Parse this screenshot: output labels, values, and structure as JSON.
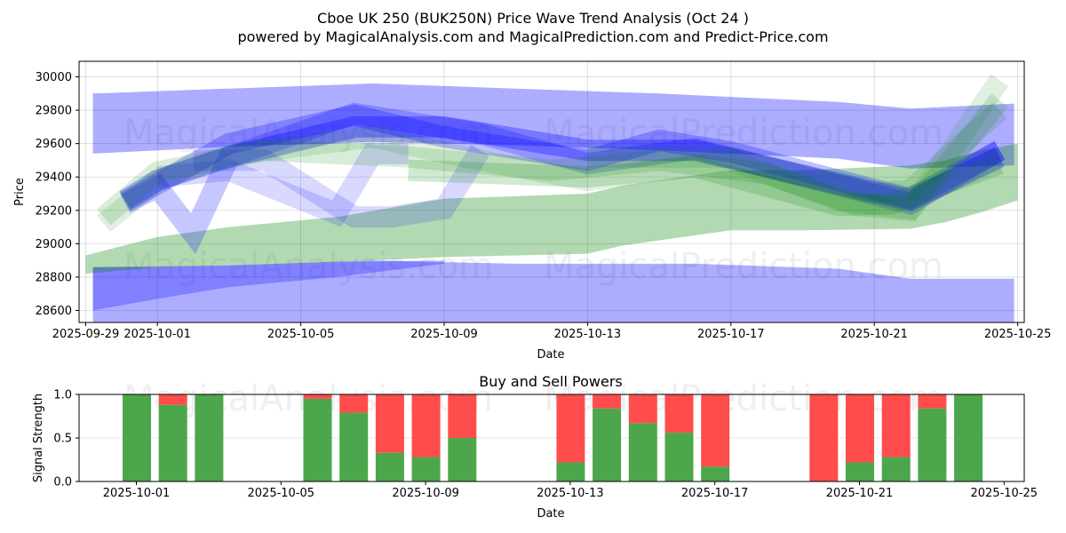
{
  "header": {
    "title": "Cboe UK 250 (BUK250N) Price Wave Trend Analysis (Oct 24 )",
    "subtitle": "powered by MagicalAnalysis.com and MagicalPrediction.com and Predict-Price.com"
  },
  "watermarks": [
    "MagicalAnalysis.com",
    "MagicalPrediction.com"
  ],
  "colors": {
    "blue_band": "#0000ff",
    "green_band": "#008000",
    "buy": "#4ca64c",
    "sell": "#ff4c4c",
    "grid": "#b0b0b0"
  },
  "chart_data": [
    {
      "type": "area",
      "title": "",
      "xlabel": "Date",
      "ylabel": "Price",
      "x_range": [
        "2025-09-29",
        "2025-10-25"
      ],
      "ylim": [
        28520,
        30090
      ],
      "grid": true,
      "x_ticks": [
        "2025-09-29",
        "2025-10-01",
        "2025-10-05",
        "2025-10-09",
        "2025-10-13",
        "2025-10-17",
        "2025-10-21",
        "2025-10-25"
      ],
      "y_ticks": [
        28600,
        28800,
        29000,
        29200,
        29400,
        29600,
        29800,
        30000
      ],
      "bands": [
        {
          "name": "upper-envelope",
          "color": "blue",
          "alpha": 0.32,
          "points": [
            [
              "2025-09-29.2",
              29900,
              29540
            ],
            [
              "2025-10-03",
              29930,
              29580
            ],
            [
              "2025-10-07",
              29960,
              29610
            ],
            [
              "2025-10-11",
              29930,
              29590
            ],
            [
              "2025-10-15",
              29900,
              29560
            ],
            [
              "2025-10-20",
              29850,
              29510
            ],
            [
              "2025-10-22",
              29810,
              29450
            ],
            [
              "2025-10-24.9",
              29840,
              29470
            ]
          ]
        },
        {
          "name": "lower-envelope",
          "color": "blue",
          "alpha": 0.32,
          "points": [
            [
              "2025-09-29.2",
              28860,
              28500
            ],
            [
              "2025-10-03",
              28870,
              28510
            ],
            [
              "2025-10-07",
              28900,
              28530
            ],
            [
              "2025-10-11",
              28880,
              28520
            ],
            [
              "2025-10-16",
              28880,
              28520
            ],
            [
              "2025-10-20",
              28850,
              28500
            ],
            [
              "2025-10-22",
              28790,
              28450
            ],
            [
              "2025-10-24.9",
              28790,
              28440
            ]
          ]
        },
        {
          "name": "lower-envelope-shadow",
          "color": "blue",
          "alpha": 0.25,
          "points": [
            [
              "2025-09-29.2",
              28860,
              28600
            ],
            [
              "2025-10-01",
              28860,
              28670
            ],
            [
              "2025-10-03",
              28870,
              28740
            ],
            [
              "2025-10-06",
              28890,
              28800
            ],
            [
              "2025-10-09",
              28900,
              28880
            ]
          ]
        },
        {
          "name": "trend-green",
          "color": "green",
          "alpha": 0.3,
          "points": [
            [
              "2025-09-29",
              28930,
              28820
            ],
            [
              "2025-10-01",
              29040,
              28860
            ],
            [
              "2025-10-03",
              29100,
              28870
            ],
            [
              "2025-10-06",
              29160,
              28890
            ],
            [
              "2025-10-09",
              29270,
              28920
            ],
            [
              "2025-10-13",
              29300,
              28940
            ],
            [
              "2025-10-14",
              29350,
              28990
            ],
            [
              "2025-10-17",
              29440,
              29080
            ],
            [
              "2025-10-19",
              29440,
              29080
            ],
            [
              "2025-10-22",
              29470,
              29090
            ],
            [
              "2025-10-23",
              29500,
              29130
            ],
            [
              "2025-10-24",
              29560,
              29190
            ],
            [
              "2025-10-25",
              29600,
              29260
            ]
          ]
        }
      ],
      "waves": [
        {
          "color": "blue",
          "alpha": 0.3,
          "points": [
            [
              "2025-09-30.1",
              29260
            ],
            [
              "2025-10-01",
              29380
            ],
            [
              "2025-10-03",
              29520
            ],
            [
              "2025-10-06.5",
              29700
            ],
            [
              "2025-10-09",
              29700
            ],
            [
              "2025-10-13",
              29560
            ],
            [
              "2025-10-16",
              29560
            ],
            [
              "2025-10-20",
              29360
            ],
            [
              "2025-10-22",
              29260
            ],
            [
              "2025-10-24.5",
              29520
            ]
          ]
        },
        {
          "color": "blue",
          "alpha": 0.25,
          "points": [
            [
              "2025-09-30.1",
              29250
            ],
            [
              "2025-10-01.5",
              29420
            ],
            [
              "2025-10-03",
              29600
            ],
            [
              "2025-10-06.5",
              29770
            ],
            [
              "2025-10-09",
              29640
            ],
            [
              "2025-10-13",
              29500
            ],
            [
              "2025-10-15",
              29620
            ],
            [
              "2025-10-17",
              29550
            ],
            [
              "2025-10-20",
              29380
            ],
            [
              "2025-10-22",
              29270
            ],
            [
              "2025-10-24.5",
              29560
            ]
          ]
        },
        {
          "color": "blue",
          "alpha": 0.22,
          "points": [
            [
              "2025-09-30.1",
              29240
            ],
            [
              "2025-10-01",
              29340
            ],
            [
              "2025-10-02",
              29060
            ],
            [
              "2025-10-03",
              29520
            ],
            [
              "2025-10-06.5",
              29780
            ],
            [
              "2025-10-10",
              29660
            ],
            [
              "2025-10-13",
              29480
            ],
            [
              "2025-10-16",
              29570
            ],
            [
              "2025-10-20",
              29350
            ],
            [
              "2025-10-22",
              29240
            ],
            [
              "2025-10-24.5",
              29560
            ]
          ]
        },
        {
          "color": "blue",
          "alpha": 0.15,
          "points": [
            [
              "2025-10-01",
              29400
            ],
            [
              "2025-10-03",
              29440
            ],
            [
              "2025-10-06",
              29180
            ],
            [
              "2025-10-07",
              29540
            ],
            [
              "2025-10-08",
              29540
            ]
          ]
        },
        {
          "color": "blue",
          "alpha": 0.15,
          "points": [
            [
              "2025-10-02",
              29500
            ],
            [
              "2025-10-04",
              29500
            ],
            [
              "2025-10-06.5",
              29160
            ],
            [
              "2025-10-07.5",
              29160
            ],
            [
              "2025-10-09",
              29210
            ],
            [
              "2025-10-10",
              29560
            ]
          ]
        },
        {
          "color": "green",
          "alpha": 0.12,
          "points": [
            [
              "2025-09-29.5",
              29120
            ],
            [
              "2025-10-01",
              29380
            ],
            [
              "2025-10-03",
              29530
            ],
            [
              "2025-10-07",
              29640
            ],
            [
              "2025-10-10",
              29500
            ],
            [
              "2025-10-13",
              29380
            ],
            [
              "2025-10-17",
              29500
            ],
            [
              "2025-10-20",
              29260
            ],
            [
              "2025-10-22",
              29210
            ],
            [
              "2025-10-24.5",
              29980
            ]
          ]
        },
        {
          "color": "green",
          "alpha": 0.15,
          "points": [
            [
              "2025-09-29.5",
              29160
            ],
            [
              "2025-10-01",
              29430
            ],
            [
              "2025-10-04",
              29560
            ],
            [
              "2025-10-08",
              29520
            ],
            [
              "2025-10-12",
              29440
            ],
            [
              "2025-10-15",
              29500
            ],
            [
              "2025-10-18",
              29420
            ],
            [
              "2025-10-20.5",
              29230
            ],
            [
              "2025-10-22",
              29200
            ],
            [
              "2025-10-24.5",
              29860
            ]
          ]
        },
        {
          "color": "green",
          "alpha": 0.18,
          "points": [
            [
              "2025-10-08",
              29440
            ],
            [
              "2025-10-13",
              29400
            ],
            [
              "2025-10-16",
              29460
            ],
            [
              "2025-10-20",
              29230
            ],
            [
              "2025-10-21.5",
              29240
            ],
            [
              "2025-10-24.5",
              29480
            ]
          ]
        },
        {
          "color": "green",
          "alpha": 0.14,
          "points": [
            [
              "2025-10-13",
              29520
            ],
            [
              "2025-10-17",
              29520
            ],
            [
              "2025-10-21",
              29300
            ],
            [
              "2025-10-22",
              29320
            ],
            [
              "2025-10-24.5",
              29800
            ]
          ]
        }
      ]
    },
    {
      "type": "bar",
      "title": "Buy and Sell Powers",
      "xlabel": "Date",
      "ylabel": "Signal Strength",
      "ylim": [
        0,
        1
      ],
      "grid": true,
      "x_range": [
        "2025-09-29.4",
        "2025-10-25.6"
      ],
      "x_ticks": [
        "2025-10-01",
        "2025-10-05",
        "2025-10-09",
        "2025-10-13",
        "2025-10-17",
        "2025-10-21",
        "2025-10-25"
      ],
      "y_ticks": [
        "0.0",
        "0.5",
        "1.0"
      ],
      "categories": [
        "2025-10-01",
        "2025-10-02",
        "2025-10-03",
        "2025-10-06",
        "2025-10-07",
        "2025-10-08",
        "2025-10-09",
        "2025-10-10",
        "2025-10-13",
        "2025-10-14",
        "2025-10-15",
        "2025-10-16",
        "2025-10-17",
        "2025-10-20",
        "2025-10-21",
        "2025-10-22",
        "2025-10-23",
        "2025-10-24"
      ],
      "series": [
        {
          "name": "Buy",
          "values": [
            1.0,
            0.88,
            1.0,
            0.95,
            0.79,
            0.33,
            0.28,
            0.5,
            0.22,
            0.84,
            0.67,
            0.56,
            0.17,
            0.0,
            0.22,
            0.28,
            0.84,
            1.0
          ]
        },
        {
          "name": "Sell",
          "values": [
            0.0,
            0.12,
            0.0,
            0.05,
            0.21,
            0.67,
            0.72,
            0.5,
            0.78,
            0.16,
            0.33,
            0.44,
            0.83,
            1.0,
            0.78,
            0.72,
            0.16,
            0.0
          ]
        }
      ]
    }
  ]
}
